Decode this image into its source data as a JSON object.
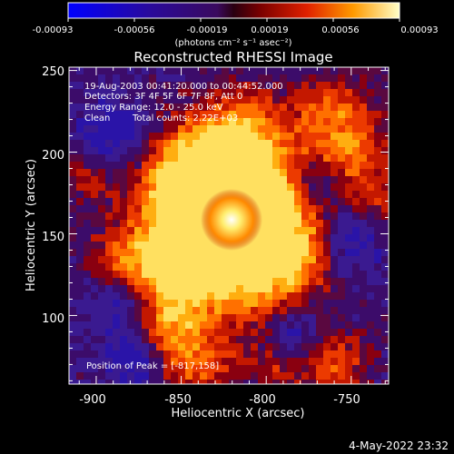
{
  "colorbar": {
    "ticks": [
      "-0.00093",
      "-0.00056",
      "-0.00019",
      "0.00019",
      "0.00056",
      "0.00093"
    ],
    "unit_label": "(photons cm⁻² s⁻¹ asec⁻²)",
    "range": [
      -0.00093,
      0.00093
    ]
  },
  "title": "Reconstructed RHESSI Image",
  "info": {
    "line1": "19-Aug-2003 00:41:20.000 to 00:44:52.000",
    "line2": "Detectors: 3F 4F 5F 6F 7F 8F, Att 0",
    "line3": "Energy Range: 12.0 - 25.0 keV",
    "line4a": "Clean",
    "line4b": "Total counts: 2.22E+03"
  },
  "peak_label": "Position of Peak = [-817,158]",
  "x_axis": {
    "label": "Heliocentric X (arcsec)",
    "ticks": [
      "-900",
      "-850",
      "-800",
      "-750"
    ],
    "tick_values": [
      -900,
      -850,
      -800,
      -750
    ],
    "range": [
      -916,
      -728
    ]
  },
  "y_axis": {
    "label": "Heliocentric Y (arcsec)",
    "ticks": [
      "100",
      "150",
      "200",
      "250"
    ],
    "tick_values": [
      100,
      150,
      200,
      250
    ],
    "range": [
      58,
      252
    ]
  },
  "timestamp": "4-May-2022 23:32",
  "colors": {
    "low": "#0000ff",
    "mid_dark": "#3a0a6e",
    "high": "#ffff60",
    "peak": "#ffffff"
  }
}
